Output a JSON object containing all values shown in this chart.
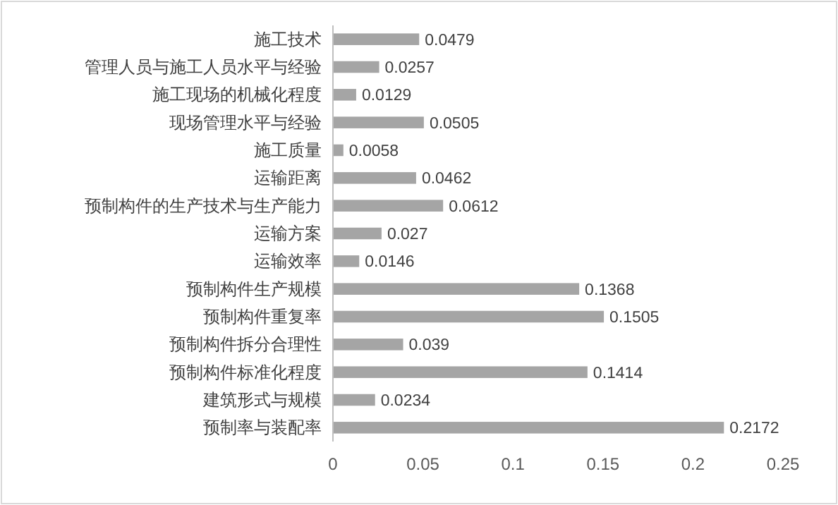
{
  "chart_data": {
    "type": "bar",
    "orientation": "horizontal",
    "categories": [
      "施工技术",
      "管理人员与施工人员水平与经验",
      "施工现场的机械化程度",
      "现场管理水平与经验",
      "施工质量",
      "运输距离",
      "预制构件的生产技术与生产能力",
      "运输方案",
      "运输效率",
      "预制构件生产规模",
      "预制构件重复率",
      "预制构件拆分合理性",
      "预制构件标准化程度",
      "建筑形式与规模",
      "预制率与装配率"
    ],
    "values": [
      0.0479,
      0.0257,
      0.0129,
      0.0505,
      0.0058,
      0.0462,
      0.0612,
      0.027,
      0.0146,
      0.1368,
      0.1505,
      0.039,
      0.1414,
      0.0234,
      0.2172
    ],
    "color": "#a5a5a5",
    "xlim": [
      0,
      0.25
    ],
    "xticks": [
      0,
      0.05,
      0.1,
      0.15,
      0.2,
      0.25
    ],
    "data_labels": true
  }
}
